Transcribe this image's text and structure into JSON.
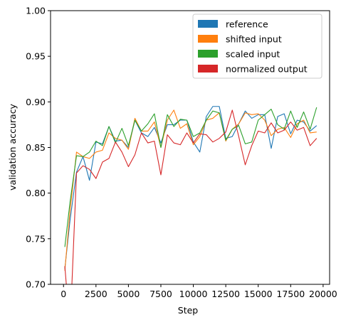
{
  "chart_data": {
    "type": "line",
    "title": "",
    "xlabel": "Step",
    "ylabel": "validation accuracy",
    "xlim": [
      -1000,
      20500
    ],
    "ylim": [
      0.7,
      1.0
    ],
    "xticks": [
      0,
      2500,
      5000,
      7500,
      10000,
      12500,
      15000,
      17500,
      20000
    ],
    "yticks": [
      0.7,
      0.75,
      0.8,
      0.85,
      0.9,
      0.95,
      1.0
    ],
    "ytick_labels": [
      "0.70",
      "0.75",
      "0.80",
      "0.85",
      "0.90",
      "0.95",
      "1.00"
    ],
    "grid": false,
    "legend_position": "top-right",
    "x": [
      100,
      500,
      1000,
      1500,
      2000,
      2500,
      3000,
      3500,
      4000,
      4500,
      5000,
      5500,
      6000,
      6500,
      7000,
      7500,
      8000,
      8500,
      9000,
      9500,
      10000,
      10500,
      11000,
      11500,
      12000,
      12500,
      13000,
      13500,
      14000,
      14500,
      15000,
      15500,
      16000,
      16500,
      17000,
      17500,
      18000,
      18500,
      19000,
      19500
    ],
    "series": [
      {
        "name": "reference",
        "color": "#1f77b4",
        "values": [
          0.717,
          0.77,
          0.823,
          0.84,
          0.814,
          0.856,
          0.854,
          0.873,
          0.857,
          0.858,
          0.85,
          0.88,
          0.866,
          0.862,
          0.872,
          0.855,
          0.875,
          0.875,
          0.88,
          0.88,
          0.856,
          0.845,
          0.884,
          0.895,
          0.895,
          0.86,
          0.862,
          0.876,
          0.89,
          0.882,
          0.886,
          0.886,
          0.849,
          0.884,
          0.887,
          0.865,
          0.88,
          0.878,
          0.868,
          0.874
        ]
      },
      {
        "name": "shifted input",
        "color": "#ff7f0e",
        "values": [
          0.715,
          0.78,
          0.845,
          0.84,
          0.838,
          0.845,
          0.847,
          0.866,
          0.86,
          0.858,
          0.848,
          0.882,
          0.868,
          0.868,
          0.878,
          0.85,
          0.88,
          0.891,
          0.871,
          0.876,
          0.853,
          0.862,
          0.88,
          0.882,
          0.888,
          0.857,
          0.87,
          0.876,
          0.888,
          0.886,
          0.887,
          0.88,
          0.863,
          0.87,
          0.872,
          0.861,
          0.876,
          0.88,
          0.866,
          0.867
        ]
      },
      {
        "name": "scaled input",
        "color": "#2ca02c",
        "values": [
          0.741,
          0.79,
          0.841,
          0.84,
          0.845,
          0.857,
          0.852,
          0.873,
          0.855,
          0.871,
          0.852,
          0.88,
          0.868,
          0.876,
          0.887,
          0.85,
          0.886,
          0.873,
          0.881,
          0.88,
          0.862,
          0.866,
          0.88,
          0.89,
          0.888,
          0.858,
          0.87,
          0.874,
          0.854,
          0.856,
          0.88,
          0.886,
          0.892,
          0.875,
          0.87,
          0.89,
          0.872,
          0.889,
          0.87,
          0.894
        ]
      },
      {
        "name": "normalized output",
        "color": "#d62728",
        "values": [
          0.72,
          0.65,
          0.822,
          0.83,
          0.826,
          0.816,
          0.834,
          0.838,
          0.856,
          0.845,
          0.829,
          0.842,
          0.866,
          0.855,
          0.857,
          0.82,
          0.864,
          0.855,
          0.853,
          0.866,
          0.855,
          0.865,
          0.864,
          0.856,
          0.86,
          0.867,
          0.891,
          0.862,
          0.831,
          0.852,
          0.868,
          0.866,
          0.877,
          0.866,
          0.869,
          0.878,
          0.869,
          0.872,
          0.852,
          0.86
        ]
      }
    ]
  }
}
